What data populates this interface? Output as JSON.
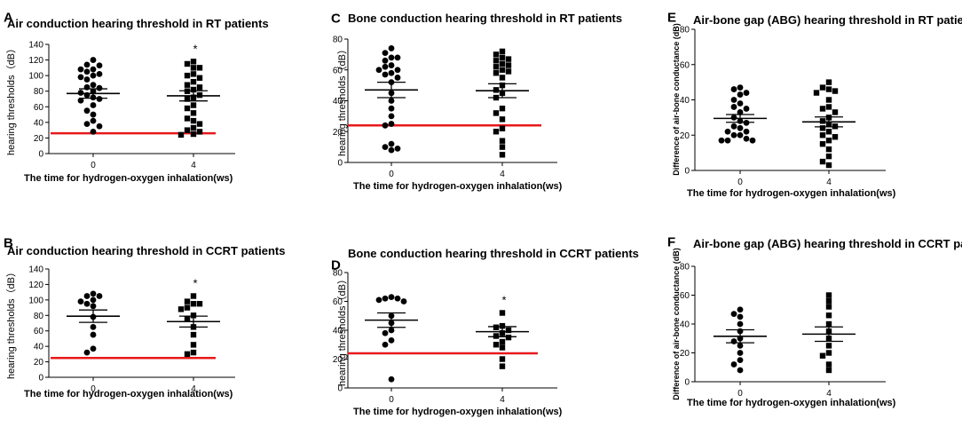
{
  "figure": {
    "background": "#ffffff",
    "threshold_color": "#e8191b",
    "marker_color": "#000000"
  },
  "chart_data": [
    {
      "panel": "A",
      "type": "scatter",
      "title": "Air conduction hearing threshold in RT patients",
      "ylabel": "hearing thresholds（dB）",
      "xlabel": "The time for hydrogen-oxygen  inhalation(ws)",
      "categories": [
        "0",
        "4"
      ],
      "ylim": [
        0,
        140
      ],
      "yticks": [
        0,
        20,
        40,
        60,
        80,
        100,
        120,
        140
      ],
      "threshold": 26,
      "groups": [
        {
          "category": "0",
          "marker": "circle",
          "mean": 77,
          "sem": 6,
          "values": [
            120,
            114,
            113,
            108,
            108,
            105,
            102,
            100,
            98,
            95,
            88,
            85,
            84,
            80,
            78,
            75,
            72,
            70,
            68,
            62,
            55,
            50,
            42,
            38,
            35,
            28
          ]
        },
        {
          "category": "4",
          "marker": "square",
          "mean": 74,
          "sem": 6.5,
          "significance": "*",
          "values": [
            118,
            115,
            110,
            110,
            102,
            100,
            97,
            92,
            88,
            85,
            82,
            80,
            75,
            72,
            70,
            62,
            58,
            52,
            45,
            42,
            38,
            33,
            30,
            28,
            25,
            24
          ]
        }
      ]
    },
    {
      "panel": "B",
      "type": "scatter",
      "title": "Air conduction hearing threshold in CCRT patients",
      "ylabel": "hearing thresholds（dB）",
      "xlabel": "The time for hydrogen-oxygen  inhalation(ws)",
      "categories": [
        "0",
        "4"
      ],
      "ylim": [
        0,
        140
      ],
      "yticks": [
        0,
        20,
        40,
        60,
        80,
        100,
        120,
        140
      ],
      "threshold": 25,
      "groups": [
        {
          "category": "0",
          "marker": "circle",
          "mean": 79,
          "sem": 8,
          "values": [
            108,
            105,
            105,
            100,
            98,
            95,
            92,
            78,
            65,
            55,
            37,
            32
          ]
        },
        {
          "category": "4",
          "marker": "square",
          "mean": 72,
          "sem": 7,
          "significance": "*",
          "values": [
            105,
            98,
            95,
            95,
            90,
            88,
            80,
            75,
            65,
            55,
            42,
            32,
            30
          ]
        }
      ]
    },
    {
      "panel": "C",
      "type": "scatter",
      "title": "Bone conduction hearing threshold in RT patients",
      "ylabel": "hearing thresholds（dB）",
      "xlabel": "The time for hydrogen-oxygen  inhalation(ws)",
      "categories": [
        "0",
        "4"
      ],
      "ylim": [
        0,
        80
      ],
      "yticks": [
        0,
        20,
        40,
        60,
        80
      ],
      "threshold": 24,
      "groups": [
        {
          "category": "0",
          "marker": "circle",
          "mean": 47,
          "sem": 5,
          "values": [
            74,
            71,
            68,
            68,
            66,
            63,
            62,
            60,
            60,
            58,
            57,
            55,
            52,
            45,
            40,
            35,
            30,
            25,
            24,
            12,
            10,
            9,
            8
          ]
        },
        {
          "category": "4",
          "marker": "square",
          "mean": 46.5,
          "sem": 4.5,
          "values": [
            72,
            70,
            68,
            67,
            66,
            64,
            63,
            62,
            60,
            59,
            58,
            55,
            50,
            47,
            45,
            42,
            35,
            32,
            28,
            22,
            20,
            14,
            10,
            5
          ]
        }
      ]
    },
    {
      "panel": "D",
      "type": "scatter",
      "title": "Bone conduction hearing threshold in CCRT patients",
      "ylabel": "hearing thresholds（dB）",
      "xlabel": "The time for hydrogen-oxygen  inhalation(ws)",
      "categories": [
        "0",
        "4"
      ],
      "ylim": [
        0,
        80
      ],
      "yticks": [
        0,
        20,
        40,
        60,
        80
      ],
      "threshold": 24,
      "groups": [
        {
          "category": "0",
          "marker": "circle",
          "mean": 47,
          "sem": 5,
          "values": [
            63,
            62,
            62,
            61,
            60,
            50,
            45,
            40,
            38,
            33,
            30,
            6
          ]
        },
        {
          "category": "4",
          "marker": "square",
          "mean": 39,
          "sem": 3.5,
          "significance": "*",
          "values": [
            52,
            43,
            42,
            40,
            38,
            36,
            35,
            32,
            30,
            28,
            20,
            15
          ]
        }
      ]
    },
    {
      "panel": "E",
      "type": "scatter",
      "title": "Air-bone gap (ABG) hearing threshold in RT patients",
      "ylabel": "Difference of air-bone conductance (dB)",
      "xlabel": "The time for hydrogen-oxygen  inhalation(ws)",
      "categories": [
        "0",
        "4"
      ],
      "ylim": [
        0,
        80
      ],
      "yticks": [
        0,
        20,
        40,
        60,
        80
      ],
      "groups": [
        {
          "category": "0",
          "marker": "circle",
          "mean": 29.5,
          "sem": 2.2,
          "values": [
            47,
            46,
            44,
            43,
            40,
            38,
            36,
            35,
            33,
            30,
            28,
            27,
            25,
            24,
            22,
            22,
            20,
            20,
            18,
            17,
            17,
            17
          ]
        },
        {
          "category": "4",
          "marker": "square",
          "mean": 27.5,
          "sem": 2.8,
          "values": [
            50,
            47,
            46,
            45,
            44,
            40,
            36,
            35,
            33,
            30,
            28,
            26,
            25,
            24,
            22,
            20,
            19,
            17,
            15,
            12,
            8,
            5,
            3
          ]
        }
      ]
    },
    {
      "panel": "F",
      "type": "scatter",
      "title": "Air-bone gap (ABG) hearing threshold in CCRT patients",
      "ylabel": "Difference of air-bone conductance (dB)",
      "xlabel": "The time for hydrogen-oxygen  inhalation(ws)",
      "categories": [
        "0",
        "4"
      ],
      "ylim": [
        0,
        80
      ],
      "yticks": [
        0,
        20,
        40,
        60,
        80
      ],
      "groups": [
        {
          "category": "0",
          "marker": "circle",
          "mean": 31.5,
          "sem": 4.5,
          "values": [
            50,
            47,
            45,
            40,
            35,
            30,
            28,
            25,
            20,
            15,
            12,
            8
          ]
        },
        {
          "category": "4",
          "marker": "square",
          "mean": 33,
          "sem": 5,
          "values": [
            60,
            56,
            52,
            46,
            40,
            35,
            30,
            25,
            20,
            18,
            12,
            8
          ]
        }
      ]
    }
  ]
}
